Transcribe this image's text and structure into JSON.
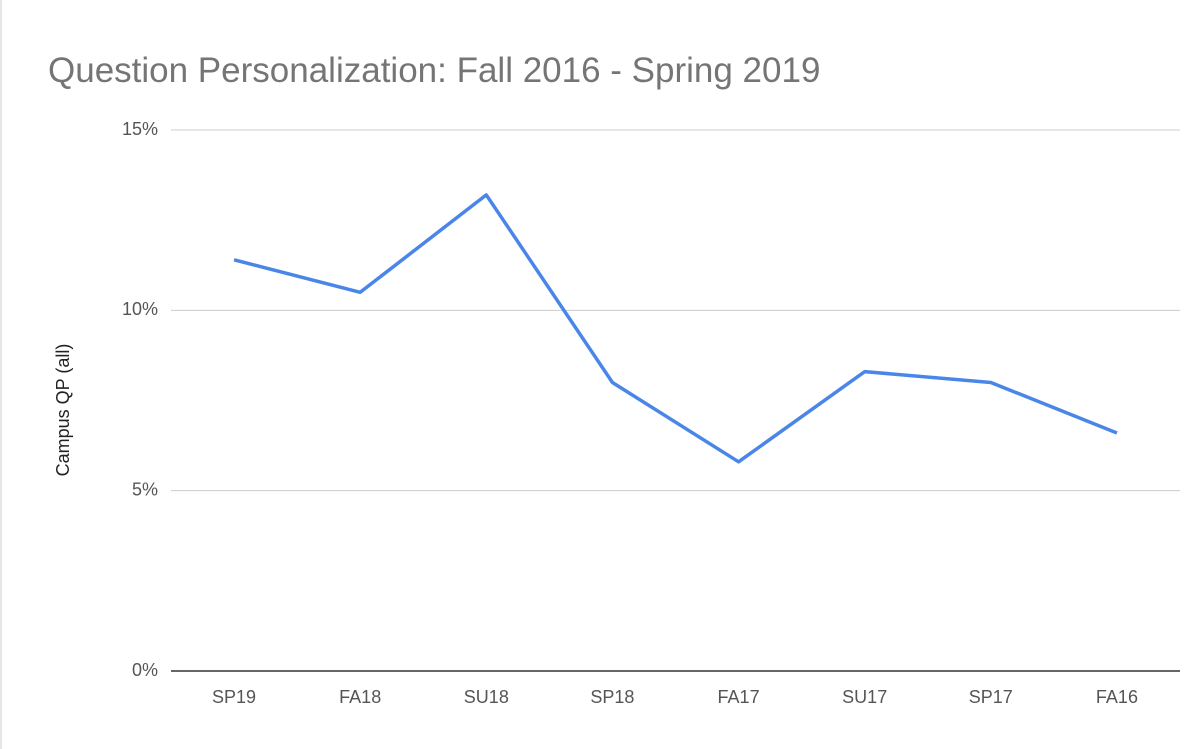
{
  "chart_data": {
    "type": "line",
    "title": "Question Personalization: Fall 2016 - Spring 2019",
    "y_label": "Campus QP (all)",
    "categories": [
      "SP19",
      "FA18",
      "SU18",
      "SP18",
      "FA17",
      "SU17",
      "SP17",
      "FA16"
    ],
    "series": [
      {
        "name": "Campus QP (all)",
        "color": "#4a86e8",
        "values": [
          11.4,
          10.5,
          13.2,
          8.0,
          5.8,
          8.3,
          8.0,
          6.6
        ]
      }
    ],
    "ylim": [
      0,
      15
    ],
    "yticks": [
      {
        "value": 0,
        "label": "0%"
      },
      {
        "value": 5,
        "label": "5%"
      },
      {
        "value": 10,
        "label": "10%"
      },
      {
        "value": 15,
        "label": "15%"
      }
    ],
    "grid": true
  }
}
